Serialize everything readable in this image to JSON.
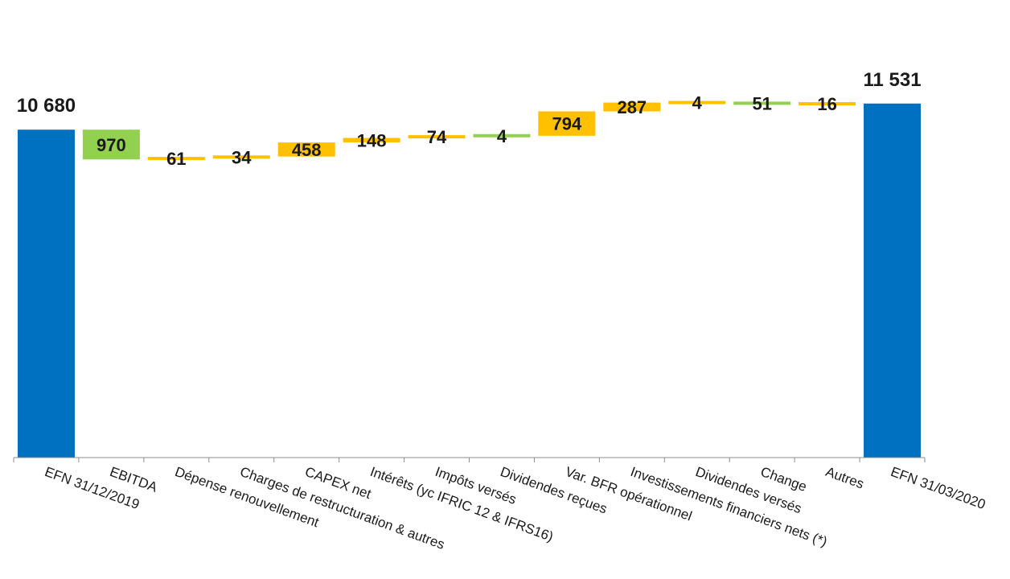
{
  "chart_data": {
    "type": "waterfall",
    "categories": [
      "EFN 31/12/2019",
      "EBITDA",
      "Dépense renouvellement",
      "Charges de restructuration & autres",
      "CAPEX net",
      "Intérêts (yc IFRIC 12 & IFRS16)",
      "Impôts versés",
      "Dividendes reçues",
      "Var. BFR opérationnel",
      "Investissements financiers nets (*)",
      "Dividendes versés",
      "Change",
      "Autres",
      "EFN 31/03/2020"
    ],
    "value_labels": [
      "10 680",
      "970",
      "61",
      "34",
      "458",
      "148",
      "74",
      "4",
      "794",
      "287",
      "4",
      "51",
      "16",
      "11 531"
    ],
    "bars": [
      {
        "kind": "total",
        "start": 0,
        "end": 10680
      },
      {
        "kind": "decrease",
        "start": 10680,
        "end": 9710
      },
      {
        "kind": "increase",
        "start": 9710,
        "end": 9771
      },
      {
        "kind": "increase",
        "start": 9771,
        "end": 9805
      },
      {
        "kind": "increase",
        "start": 9805,
        "end": 10263
      },
      {
        "kind": "increase",
        "start": 10263,
        "end": 10411
      },
      {
        "kind": "increase",
        "start": 10411,
        "end": 10485
      },
      {
        "kind": "decrease",
        "start": 10485,
        "end": 10481
      },
      {
        "kind": "increase",
        "start": 10481,
        "end": 11275
      },
      {
        "kind": "increase",
        "start": 11275,
        "end": 11562
      },
      {
        "kind": "increase",
        "start": 11562,
        "end": 11566
      },
      {
        "kind": "decrease",
        "start": 11566,
        "end": 11515
      },
      {
        "kind": "increase",
        "start": 11515,
        "end": 11531
      },
      {
        "kind": "total",
        "start": 0,
        "end": 11531
      }
    ],
    "colors": {
      "total": "#0070c0",
      "increase": "#ffc000",
      "decrease": "#92d050"
    },
    "ylim": [
      0,
      11950
    ],
    "grid": false,
    "legend": "none"
  }
}
